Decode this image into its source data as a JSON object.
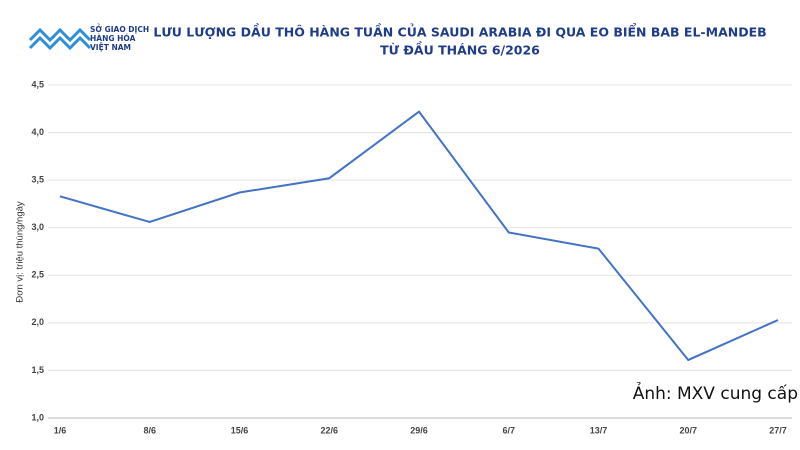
{
  "logo": [
    "SỞ GIAO DỊCH",
    "HÀNG HÓA",
    "VIỆT NAM"
  ],
  "chart_data": {
    "type": "line",
    "title": [
      "LƯU LƯỢNG DẦU THÔ HÀNG TUẦN CỦA SAUDI ARABIA ĐI QUA EO BIỂN BAB EL-MANDEB",
      "TỪ ĐẦU THÁNG 6/2026"
    ],
    "y_label": "Đơn vị: triệu thùng/ngày",
    "annotation": "Ảnh: MXV cung cấp",
    "categories": [
      "1/6",
      "8/6",
      "15/6",
      "22/6",
      "29/6",
      "6/7",
      "13/7",
      "20/7",
      "27/7"
    ],
    "series": [
      {
        "name": "Saudi Arabia",
        "color": "#4472c4",
        "values": [
          3.33,
          3.06,
          3.37,
          3.52,
          4.22,
          2.95,
          2.78,
          1.61,
          2.03
        ]
      }
    ],
    "ylim": [
      1.0,
      4.5
    ],
    "yticks": [
      {
        "value": 1.0,
        "label": "1,0"
      },
      {
        "value": 1.5,
        "label": "1,5"
      },
      {
        "value": 2.0,
        "label": "2,0"
      },
      {
        "value": 2.5,
        "label": "2,5"
      },
      {
        "value": 3.0,
        "label": "3,0"
      },
      {
        "value": 3.5,
        "label": "3,5"
      },
      {
        "value": 4.0,
        "label": "4,0"
      },
      {
        "value": 4.5,
        "label": "4,5"
      }
    ],
    "grid": true
  }
}
